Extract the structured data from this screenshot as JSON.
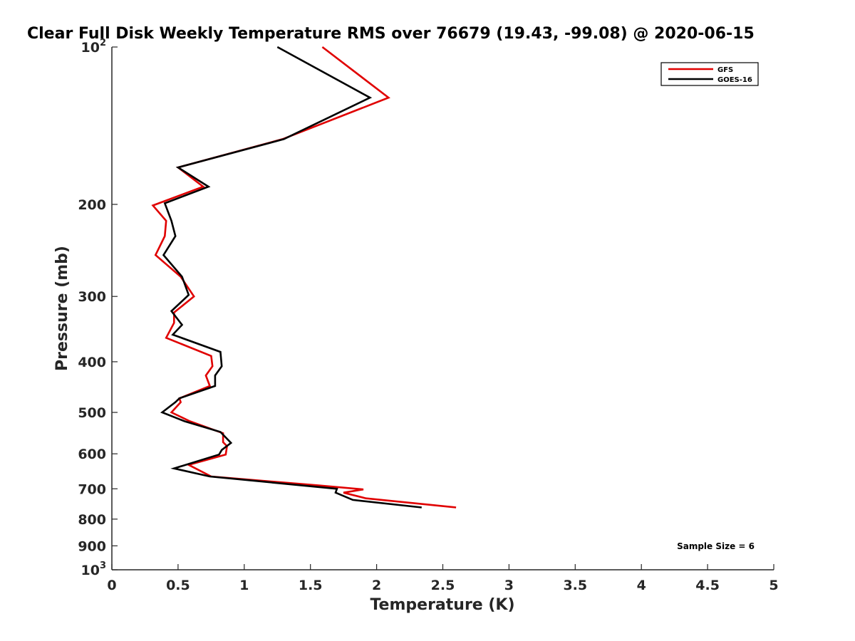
{
  "chart_data": {
    "type": "line",
    "title": "Clear Full Disk Weekly Temperature RMS over 76679 (19.43, -99.08) @ 2020-06-15",
    "xlabel": "Temperature (K)",
    "ylabel": "Pressure (mb)",
    "xlim": [
      0,
      5
    ],
    "ylim": [
      100,
      1000
    ],
    "y_scale": "log",
    "y_reversed": true,
    "x_ticks": [
      0,
      0.5,
      1,
      1.5,
      2,
      2.5,
      3,
      3.5,
      4,
      4.5,
      5
    ],
    "x_tick_labels": [
      "0",
      "0.5",
      "1",
      "1.5",
      "2",
      "2.5",
      "3",
      "3.5",
      "4",
      "4.5",
      "5"
    ],
    "y_ticks": [
      100,
      200,
      300,
      400,
      500,
      600,
      700,
      800,
      900,
      1000
    ],
    "y_tick_labels": [
      {
        "base": "10",
        "exp": "2"
      },
      {
        "base": "200",
        "exp": ""
      },
      {
        "base": "300",
        "exp": ""
      },
      {
        "base": "400",
        "exp": ""
      },
      {
        "base": "500",
        "exp": ""
      },
      {
        "base": "600",
        "exp": ""
      },
      {
        "base": "700",
        "exp": ""
      },
      {
        "base": "800",
        "exp": ""
      },
      {
        "base": "900",
        "exp": ""
      },
      {
        "base": "10",
        "exp": "3"
      }
    ],
    "grid": false,
    "legend": {
      "placement": "top-right"
    },
    "annotation": "Sample Size = 6",
    "series": [
      {
        "name": "GFS",
        "color": "#e00000",
        "points": [
          [
            1.59,
            100
          ],
          [
            2.09,
            125
          ],
          [
            1.29,
            150
          ],
          [
            0.5,
            170
          ],
          [
            0.69,
            185
          ],
          [
            0.31,
            201
          ],
          [
            0.41,
            215
          ],
          [
            0.4,
            230
          ],
          [
            0.33,
            250
          ],
          [
            0.52,
            275
          ],
          [
            0.62,
            300
          ],
          [
            0.47,
            322
          ],
          [
            0.47,
            337
          ],
          [
            0.41,
            360
          ],
          [
            0.75,
            390
          ],
          [
            0.76,
            408
          ],
          [
            0.71,
            425
          ],
          [
            0.74,
            445
          ],
          [
            0.51,
            470
          ],
          [
            0.52,
            478
          ],
          [
            0.45,
            500
          ],
          [
            0.59,
            520
          ],
          [
            0.84,
            548
          ],
          [
            0.84,
            570
          ],
          [
            0.87,
            580
          ],
          [
            0.86,
            602
          ],
          [
            0.58,
            630
          ],
          [
            0.75,
            663
          ],
          [
            1.57,
            690
          ],
          [
            1.9,
            702
          ],
          [
            1.75,
            712
          ],
          [
            1.92,
            730
          ],
          [
            2.6,
            760
          ]
        ]
      },
      {
        "name": "GOES-16",
        "color": "#000000",
        "points": [
          [
            1.25,
            100
          ],
          [
            1.95,
            125
          ],
          [
            1.3,
            150
          ],
          [
            0.5,
            170
          ],
          [
            0.73,
            185
          ],
          [
            0.4,
            199
          ],
          [
            0.45,
            215
          ],
          [
            0.48,
            230
          ],
          [
            0.39,
            250
          ],
          [
            0.53,
            275
          ],
          [
            0.58,
            298
          ],
          [
            0.45,
            320
          ],
          [
            0.53,
            340
          ],
          [
            0.46,
            355
          ],
          [
            0.82,
            383
          ],
          [
            0.83,
            408
          ],
          [
            0.78,
            425
          ],
          [
            0.78,
            445
          ],
          [
            0.51,
            470
          ],
          [
            0.48,
            478
          ],
          [
            0.38,
            500
          ],
          [
            0.55,
            520
          ],
          [
            0.82,
            545
          ],
          [
            0.9,
            572
          ],
          [
            0.83,
            590
          ],
          [
            0.81,
            602
          ],
          [
            0.47,
            640
          ],
          [
            0.74,
            663
          ],
          [
            1.7,
            700
          ],
          [
            1.69,
            712
          ],
          [
            1.82,
            735
          ],
          [
            2.34,
            760
          ]
        ]
      }
    ]
  }
}
